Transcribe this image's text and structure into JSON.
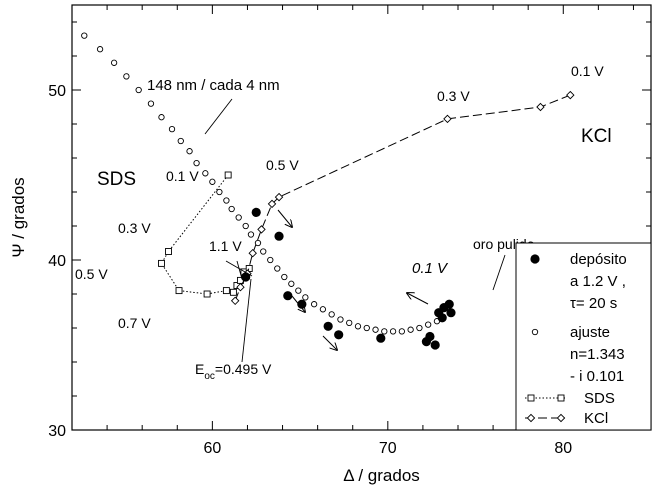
{
  "chart_data": {
    "type": "scatter",
    "xlabel": "Δ / grados",
    "ylabel": "Ψ / grados",
    "xlim": [
      52,
      85
    ],
    "ylim": [
      30,
      55
    ],
    "x_ticks": [
      60,
      70,
      80
    ],
    "y_ticks": [
      30,
      40,
      50
    ],
    "grid": false,
    "legend_position": "bottom-right",
    "series": [
      {
        "name": "depósito a 1.2 V , τ= 20 s",
        "legend_lines": [
          "depósito",
          "a 1.2 V ,",
          "τ=  20 s"
        ],
        "marker": "filled-circle",
        "points": [
          [
            62.5,
            42.8
          ],
          [
            63.8,
            41.4
          ],
          [
            61.9,
            39.0
          ],
          [
            64.3,
            37.9
          ],
          [
            65.1,
            37.4
          ],
          [
            66.6,
            36.1
          ],
          [
            67.2,
            35.6
          ],
          [
            69.6,
            35.4
          ],
          [
            72.2,
            35.2
          ],
          [
            72.4,
            35.5
          ],
          [
            72.7,
            35.0
          ],
          [
            72.9,
            36.9
          ],
          [
            73.2,
            37.2
          ],
          [
            73.5,
            37.4
          ],
          [
            73.6,
            36.9
          ],
          [
            73.1,
            36.6
          ]
        ]
      },
      {
        "name": "ajuste n=1.343 - i 0.101",
        "legend_lines": [
          "ajuste",
          "n=1.343",
          "- i 0.101"
        ],
        "marker": "open-circle-small",
        "points": [
          [
            52.7,
            53.2
          ],
          [
            53.6,
            52.4
          ],
          [
            54.4,
            51.6
          ],
          [
            55.1,
            50.8
          ],
          [
            55.8,
            50.0
          ],
          [
            56.5,
            49.2
          ],
          [
            57.1,
            48.4
          ],
          [
            57.7,
            47.7
          ],
          [
            58.2,
            47.0
          ],
          [
            58.7,
            46.4
          ],
          [
            59.1,
            45.7
          ],
          [
            59.6,
            45.1
          ],
          [
            60.0,
            44.6
          ],
          [
            60.4,
            44.0
          ],
          [
            60.8,
            43.5
          ],
          [
            61.1,
            43.0
          ],
          [
            61.5,
            42.5
          ],
          [
            61.9,
            42.0
          ],
          [
            62.2,
            41.5
          ],
          [
            62.6,
            41.0
          ],
          [
            62.9,
            40.5
          ],
          [
            63.3,
            40.0
          ],
          [
            63.7,
            39.5
          ],
          [
            64.1,
            39.0
          ],
          [
            64.5,
            38.6
          ],
          [
            64.9,
            38.2
          ],
          [
            65.3,
            37.8
          ],
          [
            65.8,
            37.4
          ],
          [
            66.3,
            37.1
          ],
          [
            66.8,
            36.8
          ],
          [
            67.3,
            36.5
          ],
          [
            67.8,
            36.3
          ],
          [
            68.3,
            36.1
          ],
          [
            68.8,
            36.0
          ],
          [
            69.3,
            35.9
          ],
          [
            69.8,
            35.8
          ],
          [
            70.3,
            35.8
          ],
          [
            70.8,
            35.8
          ],
          [
            71.3,
            35.9
          ],
          [
            71.8,
            36.0
          ],
          [
            72.3,
            36.2
          ],
          [
            72.8,
            36.4
          ]
        ]
      },
      {
        "name": "SDS",
        "marker": "open-square",
        "line": "dotted",
        "points": [
          [
            60.9,
            45.0
          ],
          [
            57.5,
            40.5
          ],
          [
            57.1,
            39.8
          ],
          [
            58.1,
            38.2
          ],
          [
            59.7,
            38.0
          ],
          [
            60.8,
            38.2
          ],
          [
            61.2,
            38.1
          ],
          [
            61.4,
            38.5
          ],
          [
            61.6,
            38.8
          ],
          [
            61.8,
            39.3
          ],
          [
            62.1,
            39.5
          ]
        ]
      },
      {
        "name": "KCl",
        "marker": "open-diamond",
        "line": "dashed",
        "points": [
          [
            61.3,
            37.6
          ],
          [
            61.6,
            38.4
          ],
          [
            62.0,
            39.2
          ],
          [
            62.3,
            40.4
          ],
          [
            62.8,
            41.8
          ],
          [
            63.4,
            43.3
          ],
          [
            63.8,
            43.7
          ],
          [
            73.4,
            48.3
          ],
          [
            78.7,
            49.0
          ],
          [
            80.4,
            49.7
          ]
        ]
      }
    ],
    "annotations": [
      {
        "text": "148 nm / cada 4 nm"
      },
      {
        "text": "0.1 V"
      },
      {
        "text": "0.3 V"
      },
      {
        "text": "0.5 V"
      },
      {
        "text": "0.7 V"
      },
      {
        "text": "1.1 V"
      },
      {
        "text": "E",
        "subscript": "oc",
        "suffix": "=0.495 V"
      },
      {
        "text": "0.5 V"
      },
      {
        "text": "0.3 V"
      },
      {
        "text": "0.1 V"
      },
      {
        "text": "KCl"
      },
      {
        "text": "SDS"
      },
      {
        "text": "oro pulido"
      },
      {
        "text": "0.1 V"
      }
    ]
  }
}
